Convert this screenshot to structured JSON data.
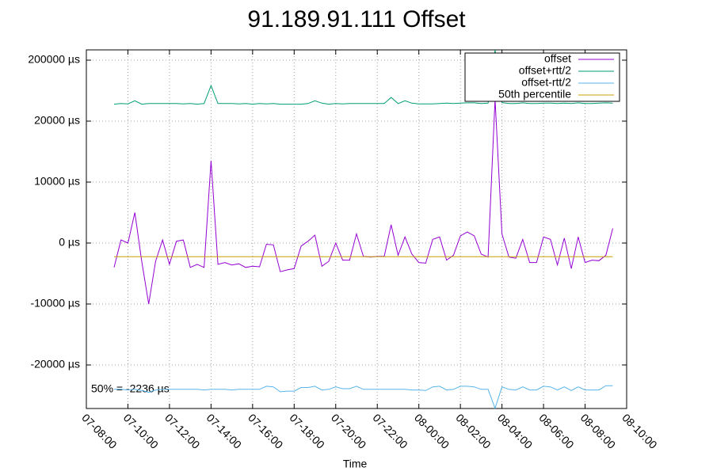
{
  "chart_data": {
    "type": "line",
    "title": "91.189.91.111 Offset",
    "xlabel": "Time",
    "annotation": "50% = -2236 µs",
    "x": [
      "07-09:20",
      "07-09:40",
      "07-10:00",
      "07-10:20",
      "07-10:40",
      "07-11:00",
      "07-11:20",
      "07-11:40",
      "07-12:00",
      "07-12:20",
      "07-12:40",
      "07-13:00",
      "07-13:20",
      "07-13:40",
      "07-14:00",
      "07-14:20",
      "07-14:40",
      "07-15:00",
      "07-15:20",
      "07-15:40",
      "07-16:00",
      "07-16:20",
      "07-16:40",
      "07-17:00",
      "07-17:20",
      "07-17:40",
      "07-18:00",
      "07-18:20",
      "07-18:40",
      "07-19:00",
      "07-19:20",
      "07-19:40",
      "07-20:00",
      "07-20:20",
      "07-20:40",
      "07-21:00",
      "07-21:20",
      "07-21:40",
      "07-22:00",
      "07-22:20",
      "07-22:40",
      "07-23:00",
      "07-23:20",
      "07-23:40",
      "08-00:00",
      "08-00:20",
      "08-00:40",
      "08-01:00",
      "08-01:20",
      "08-01:40",
      "08-02:00",
      "08-02:20",
      "08-02:40",
      "08-03:00",
      "08-03:20",
      "08-03:40",
      "08-04:00",
      "08-04:20",
      "08-04:40",
      "08-05:00",
      "08-05:20",
      "08-05:40",
      "08-06:00",
      "08-06:20",
      "08-06:40",
      "08-07:00",
      "08-07:20",
      "08-07:40",
      "08-08:00",
      "08-08:20",
      "08-08:40",
      "08-09:00",
      "08-09:20"
    ],
    "series": [
      {
        "name": "offset",
        "color": "#9400d3",
        "values": [
          -4000,
          500,
          0,
          5000,
          -3000,
          -10000,
          -3000,
          500,
          -3500,
          300,
          500,
          -4000,
          -3500,
          -4000,
          13500,
          -3500,
          -3200,
          -3600,
          -3400,
          -4000,
          -3800,
          -3900,
          -200,
          -300,
          -4700,
          -4400,
          -4200,
          -500,
          300,
          1300,
          -3800,
          -3000,
          0,
          -2800,
          -2800,
          1500,
          -2200,
          -2300,
          -2200,
          -2200,
          3000,
          -2000,
          1000,
          -1800,
          -3200,
          -3300,
          600,
          1000,
          -2800,
          -2000,
          1200,
          1800,
          1200,
          -1800,
          -2300,
          85000,
          1500,
          -2300,
          -2500,
          600,
          -3200,
          -3200,
          1000,
          600,
          -3600,
          800,
          -4200,
          1000,
          -3200,
          -2800,
          -2900,
          -2000,
          2400
        ]
      },
      {
        "name": "offset+rtt/2",
        "color": "#009e73",
        "values": [
          70000,
          72000,
          71000,
          80000,
          70000,
          72000,
          72000,
          72000,
          72000,
          72000,
          71000,
          72000,
          70000,
          72000,
          125000,
          72000,
          72000,
          72000,
          71000,
          72000,
          70000,
          72000,
          71000,
          72000,
          70000,
          70000,
          70000,
          70000,
          72000,
          80000,
          73000,
          70000,
          72000,
          71000,
          72000,
          72000,
          72000,
          72000,
          72000,
          72000,
          90000,
          72000,
          80000,
          73000,
          71000,
          71000,
          71000,
          72000,
          73000,
          72000,
          73000,
          74000,
          74000,
          72000,
          73000,
          230000,
          75000,
          72000,
          72000,
          74000,
          72000,
          72000,
          73000,
          73000,
          72000,
          73000,
          72000,
          74000,
          72000,
          72000,
          73000,
          74000,
          73000
        ]
      },
      {
        "name": "offset-rtt/2",
        "color": "#56b4e9",
        "values": [
          -24000,
          -24000,
          -24100,
          -24000,
          -24200,
          -24500,
          -24100,
          -24000,
          -24000,
          -24000,
          -24000,
          -24000,
          -24000,
          -24100,
          -24000,
          -24000,
          -24000,
          -24100,
          -24000,
          -24000,
          -24000,
          -24000,
          -23500,
          -23600,
          -24400,
          -24300,
          -24300,
          -23700,
          -23700,
          -23500,
          -24100,
          -24000,
          -23600,
          -23900,
          -23900,
          -23500,
          -24000,
          -24000,
          -24000,
          -24000,
          -24000,
          -24000,
          -24000,
          -24100,
          -24100,
          -24200,
          -23600,
          -23500,
          -24100,
          -24000,
          -23500,
          -23500,
          -23600,
          -24000,
          -24000,
          -27100,
          -23600,
          -24000,
          -24100,
          -23600,
          -24100,
          -24100,
          -23500,
          -23600,
          -24100,
          -23600,
          -24200,
          -23600,
          -24100,
          -24100,
          -24100,
          -23400,
          -23400
        ]
      },
      {
        "name": "50th percentile",
        "color": "#c8a000",
        "value": -2236
      }
    ],
    "xlim": [
      "07-08:00",
      "08-10:00"
    ],
    "xticks": [
      "07-08:00",
      "07-10:00",
      "07-12:00",
      "07-14:00",
      "07-16:00",
      "07-18:00",
      "07-20:00",
      "07-22:00",
      "08-00:00",
      "08-02:00",
      "08-04:00",
      "08-06:00",
      "08-08:00",
      "08-10:00"
    ],
    "ylim": [
      -27143,
      230390
    ],
    "yticks": [
      {
        "value": -20000,
        "label": "-20000 µs"
      },
      {
        "value": -10000,
        "label": "-10000 µs"
      },
      {
        "value": 0,
        "label": "0 µs"
      },
      {
        "value": 10000,
        "label": "10000 µs"
      },
      {
        "value": 20000,
        "label": "20000 µs"
      },
      {
        "value": 200000,
        "label": "200000 µs"
      }
    ],
    "grid": true,
    "legend": "upper right"
  }
}
